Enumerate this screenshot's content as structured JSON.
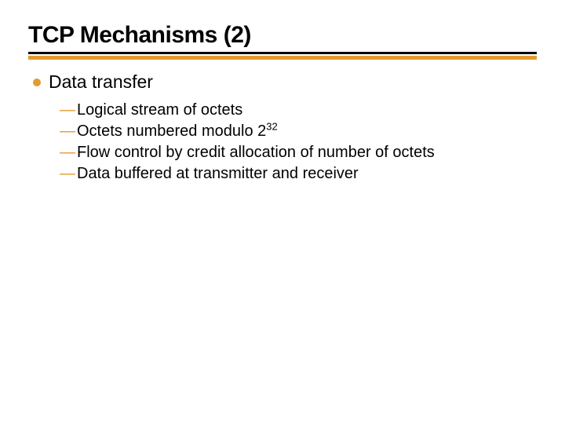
{
  "colors": {
    "accent": "#e39b2e",
    "title_rule": "#000000",
    "text": "#000000",
    "background": "#ffffff"
  },
  "typography": {
    "title_font": "Arial Black",
    "body_font": "Verdana",
    "title_size_pt": 30,
    "bullet_size_pt": 23,
    "sub_size_pt": 20
  },
  "slide": {
    "title": "TCP Mechanisms (2)",
    "bullet": {
      "label": "Data transfer",
      "subitems": [
        {
          "text": "Logical stream of octets"
        },
        {
          "prefix": "Octets numbered modulo 2",
          "sup": "32"
        },
        {
          "text": "Flow control by credit allocation of number of octets"
        },
        {
          "text": "Data buffered at transmitter and receiver"
        }
      ]
    }
  }
}
